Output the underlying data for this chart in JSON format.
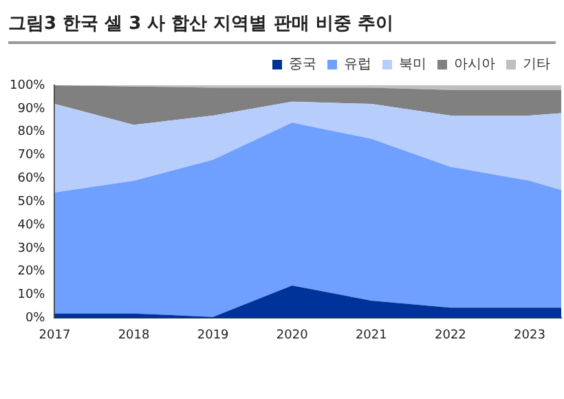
{
  "chart_data": {
    "type": "area",
    "stacked": true,
    "title": "그림3 한국 셀 3 사 합산 지역별 판매 비중 추이",
    "x": [
      2017,
      2018,
      2019,
      2020,
      2021,
      2022,
      2023,
      2023.4
    ],
    "xlim": [
      2017,
      2023.4
    ],
    "xticks": [
      2017,
      2018,
      2019,
      2020,
      2021,
      2022,
      2023
    ],
    "ylim": [
      0,
      100
    ],
    "yticks": [
      {
        "value": 0,
        "label": "0%"
      },
      {
        "value": 10,
        "label": "10%"
      },
      {
        "value": 20,
        "label": "20%"
      },
      {
        "value": 30,
        "label": "30%"
      },
      {
        "value": 40,
        "label": "40%"
      },
      {
        "value": 50,
        "label": "50%"
      },
      {
        "value": 60,
        "label": "60%"
      },
      {
        "value": 70,
        "label": "70%"
      },
      {
        "value": 80,
        "label": "80%"
      },
      {
        "value": 90,
        "label": "90%"
      },
      {
        "value": 100,
        "label": "100%"
      }
    ],
    "grid": false,
    "legend": "top right",
    "series": [
      {
        "name": "중국",
        "color": "#003399",
        "values": [
          2,
          2,
          0.5,
          14,
          7.5,
          4.5,
          4.5,
          4.5
        ]
      },
      {
        "name": "유럽",
        "color": "#6f9fff",
        "values": [
          52,
          57,
          67.5,
          70,
          69.5,
          60.5,
          54.5,
          50.5
        ]
      },
      {
        "name": "북미",
        "color": "#b7cdfb",
        "values": [
          38,
          24,
          19,
          9,
          15,
          22,
          28,
          33
        ]
      },
      {
        "name": "아시아",
        "color": "#808080",
        "values": [
          8,
          16.5,
          12,
          6,
          7,
          11,
          11,
          10
        ]
      },
      {
        "name": "기타",
        "color": "#c0c0c0",
        "values": [
          0,
          0.5,
          1,
          1,
          1,
          2,
          2,
          2
        ]
      }
    ]
  }
}
